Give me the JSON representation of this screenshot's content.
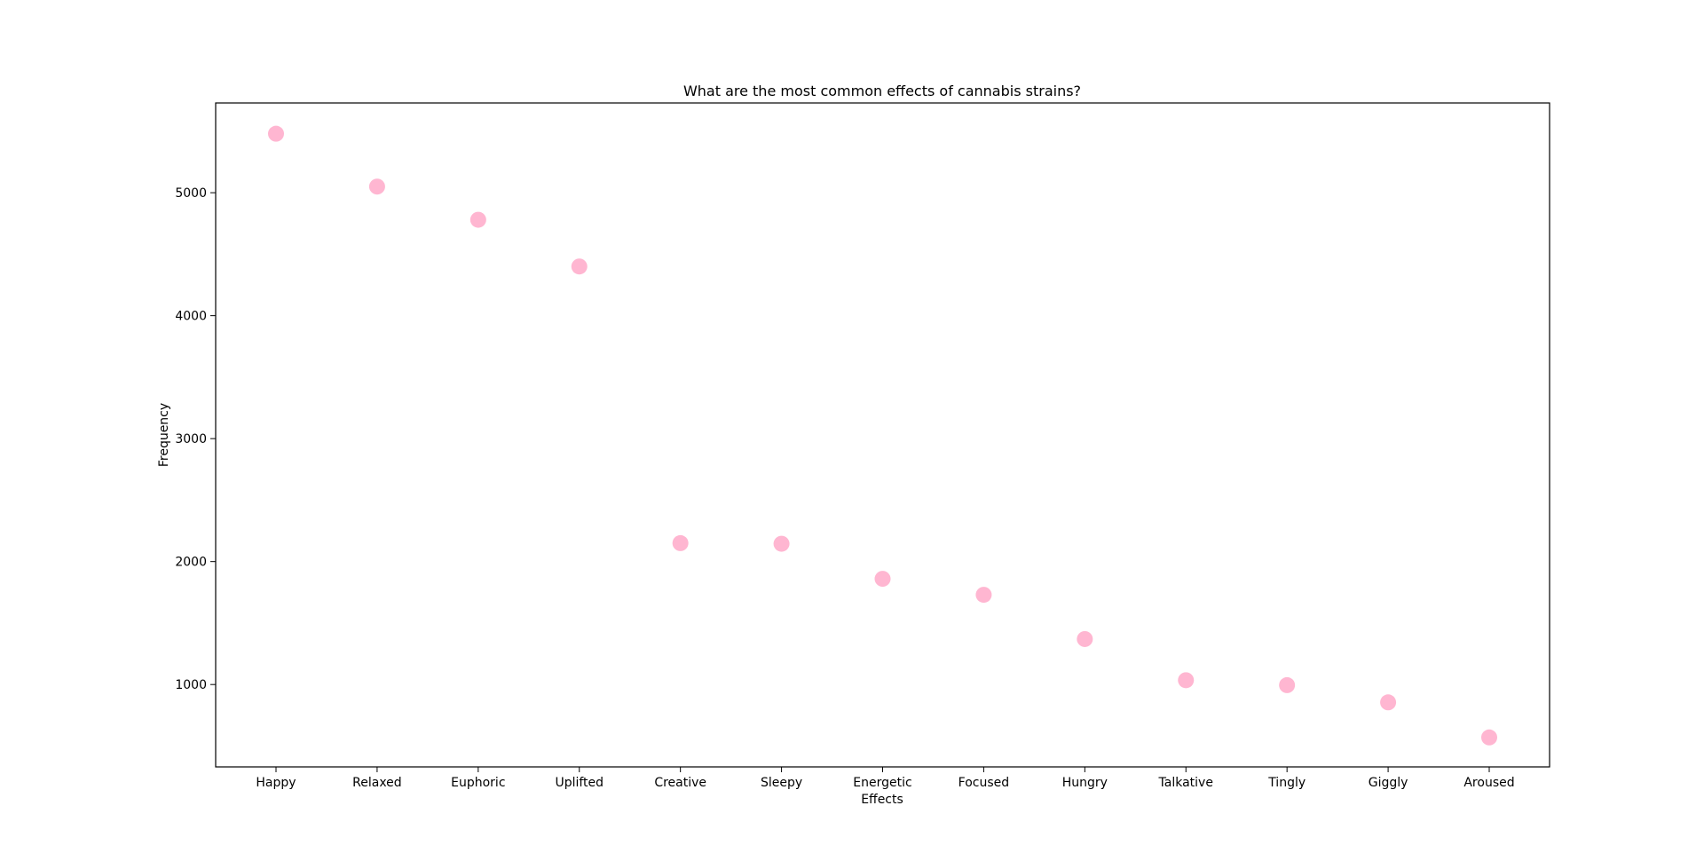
{
  "chart_data": {
    "type": "scatter",
    "title": "What are the most common effects of cannabis strains?",
    "xlabel": "Effects",
    "ylabel": "Frequency",
    "categories": [
      "Happy",
      "Relaxed",
      "Euphoric",
      "Uplifted",
      "Creative",
      "Sleepy",
      "Energetic",
      "Focused",
      "Hungry",
      "Talkative",
      "Tingly",
      "Giggly",
      "Aroused"
    ],
    "values": [
      5480,
      5050,
      4780,
      4400,
      2150,
      2145,
      1860,
      1730,
      1370,
      1035,
      995,
      855,
      570
    ],
    "ylim": [
      330,
      5730
    ],
    "yticks": [
      1000,
      2000,
      3000,
      4000,
      5000
    ],
    "grid": false,
    "marker_color": "#ffb6d1"
  }
}
